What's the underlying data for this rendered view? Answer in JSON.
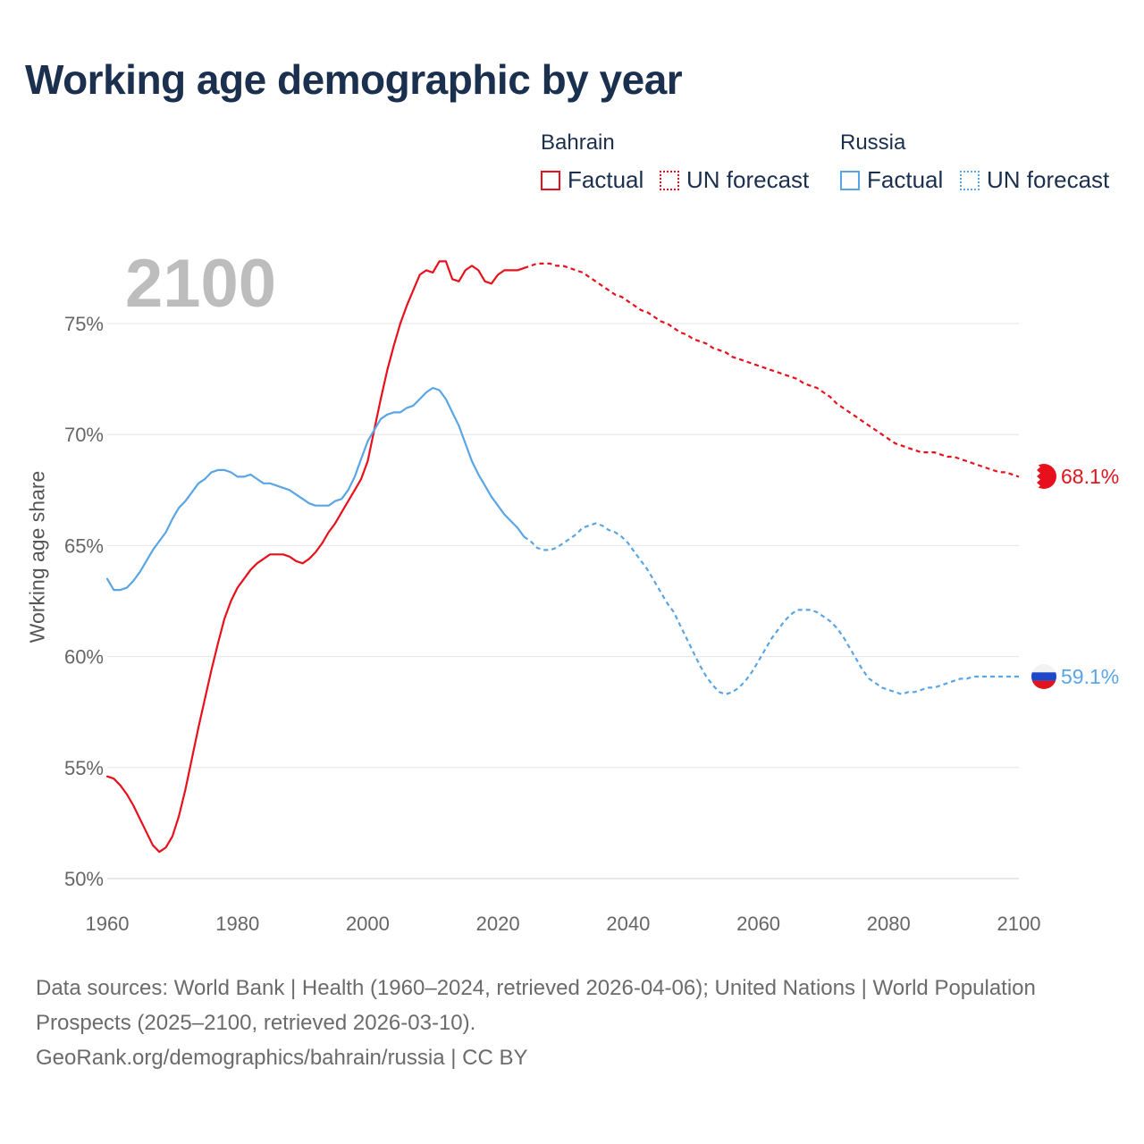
{
  "title": "Working age demographic by year",
  "current_year": "2100",
  "legend": {
    "groups": [
      {
        "name": "Bahrain",
        "color": "#e8101c",
        "factual_label": "Factual",
        "forecast_label": "UN forecast"
      },
      {
        "name": "Russia",
        "color": "#5aa5e6",
        "factual_label": "Factual",
        "forecast_label": "UN forecast"
      }
    ]
  },
  "footer": {
    "sources": "Data sources: World Bank | Health (1960–2024, retrieved 2026-04-06); United Nations | World Population Prospects (2025–2100, retrieved 2026-03-10).",
    "url": "GeoRank.org/demographics/bahrain/russia | CC BY"
  },
  "chart_data": {
    "type": "line",
    "title": "Working age demographic by year",
    "xlabel": "",
    "ylabel": "Working age share",
    "xlim": [
      1960,
      2100
    ],
    "ylim": [
      50,
      78
    ],
    "xticks": [
      1960,
      1980,
      2000,
      2020,
      2040,
      2060,
      2080,
      2100
    ],
    "xtick_labels": [
      "1960",
      "1980",
      "2000",
      "2020",
      "2040",
      "2060",
      "2080",
      "2100"
    ],
    "yticks": [
      50,
      55,
      60,
      65,
      70,
      75
    ],
    "ytick_labels": [
      "50%",
      "55%",
      "60%",
      "65%",
      "70%",
      "75%"
    ],
    "grid": true,
    "series": [
      {
        "name": "Bahrain",
        "color": "#e8101c",
        "end_label": "68.1%",
        "factual": {
          "x": [
            1960,
            1961,
            1962,
            1963,
            1964,
            1965,
            1966,
            1967,
            1968,
            1969,
            1970,
            1971,
            1972,
            1973,
            1974,
            1975,
            1976,
            1977,
            1978,
            1979,
            1980,
            1981,
            1982,
            1983,
            1984,
            1985,
            1986,
            1987,
            1988,
            1989,
            1990,
            1991,
            1992,
            1993,
            1994,
            1995,
            1996,
            1997,
            1998,
            1999,
            2000,
            2001,
            2002,
            2003,
            2004,
            2005,
            2006,
            2007,
            2008,
            2009,
            2010,
            2011,
            2012,
            2013,
            2014,
            2015,
            2016,
            2017,
            2018,
            2019,
            2020,
            2021,
            2022,
            2023,
            2024
          ],
          "y": [
            54.6,
            54.5,
            54.2,
            53.8,
            53.3,
            52.7,
            52.1,
            51.5,
            51.2,
            51.4,
            51.9,
            52.8,
            54.0,
            55.4,
            56.8,
            58.1,
            59.4,
            60.6,
            61.7,
            62.5,
            63.1,
            63.5,
            63.9,
            64.2,
            64.4,
            64.6,
            64.6,
            64.6,
            64.5,
            64.3,
            64.2,
            64.4,
            64.7,
            65.1,
            65.6,
            66.0,
            66.5,
            67.0,
            67.5,
            68.0,
            68.8,
            70.2,
            71.6,
            72.9,
            74.0,
            75.0,
            75.8,
            76.5,
            77.2,
            77.4,
            77.3,
            77.8,
            77.8,
            77.0,
            76.9,
            77.4,
            77.6,
            77.4,
            76.9,
            76.8,
            77.2,
            77.4,
            77.4,
            77.4,
            77.5
          ]
        },
        "forecast": {
          "x": [
            2024,
            2025,
            2026,
            2027,
            2028,
            2029,
            2030,
            2031,
            2032,
            2033,
            2034,
            2035,
            2036,
            2037,
            2038,
            2039,
            2040,
            2041,
            2042,
            2043,
            2044,
            2045,
            2046,
            2047,
            2048,
            2049,
            2050,
            2051,
            2052,
            2053,
            2054,
            2055,
            2056,
            2057,
            2058,
            2059,
            2060,
            2061,
            2062,
            2063,
            2064,
            2065,
            2066,
            2067,
            2068,
            2069,
            2070,
            2071,
            2072,
            2073,
            2074,
            2075,
            2076,
            2077,
            2078,
            2079,
            2080,
            2081,
            2082,
            2083,
            2084,
            2085,
            2086,
            2087,
            2088,
            2089,
            2090,
            2091,
            2092,
            2093,
            2094,
            2095,
            2096,
            2097,
            2098,
            2099,
            2100
          ],
          "y": [
            77.5,
            77.6,
            77.7,
            77.7,
            77.7,
            77.6,
            77.6,
            77.5,
            77.4,
            77.3,
            77.1,
            76.9,
            76.7,
            76.5,
            76.3,
            76.2,
            76.0,
            75.8,
            75.6,
            75.5,
            75.3,
            75.1,
            75.0,
            74.8,
            74.6,
            74.5,
            74.3,
            74.2,
            74.1,
            73.9,
            73.8,
            73.7,
            73.5,
            73.4,
            73.3,
            73.2,
            73.1,
            73.0,
            72.9,
            72.8,
            72.7,
            72.6,
            72.5,
            72.3,
            72.2,
            72.1,
            71.9,
            71.7,
            71.4,
            71.2,
            71.0,
            70.8,
            70.6,
            70.4,
            70.2,
            70.0,
            69.8,
            69.6,
            69.5,
            69.4,
            69.3,
            69.2,
            69.2,
            69.2,
            69.1,
            69.0,
            69.0,
            68.9,
            68.8,
            68.7,
            68.6,
            68.5,
            68.4,
            68.3,
            68.3,
            68.2,
            68.1
          ]
        }
      },
      {
        "name": "Russia",
        "color": "#5aa5e6",
        "end_label": "59.1%",
        "factual": {
          "x": [
            1960,
            1961,
            1962,
            1963,
            1964,
            1965,
            1966,
            1967,
            1968,
            1969,
            1970,
            1971,
            1972,
            1973,
            1974,
            1975,
            1976,
            1977,
            1978,
            1979,
            1980,
            1981,
            1982,
            1983,
            1984,
            1985,
            1986,
            1987,
            1988,
            1989,
            1990,
            1991,
            1992,
            1993,
            1994,
            1995,
            1996,
            1997,
            1998,
            1999,
            2000,
            2001,
            2002,
            2003,
            2004,
            2005,
            2006,
            2007,
            2008,
            2009,
            2010,
            2011,
            2012,
            2013,
            2014,
            2015,
            2016,
            2017,
            2018,
            2019,
            2020,
            2021,
            2022,
            2023,
            2024
          ],
          "y": [
            63.5,
            63.0,
            63.0,
            63.1,
            63.4,
            63.8,
            64.3,
            64.8,
            65.2,
            65.6,
            66.2,
            66.7,
            67.0,
            67.4,
            67.8,
            68.0,
            68.3,
            68.4,
            68.4,
            68.3,
            68.1,
            68.1,
            68.2,
            68.0,
            67.8,
            67.8,
            67.7,
            67.6,
            67.5,
            67.3,
            67.1,
            66.9,
            66.8,
            66.8,
            66.8,
            67.0,
            67.1,
            67.5,
            68.1,
            68.9,
            69.7,
            70.2,
            70.7,
            70.9,
            71.0,
            71.0,
            71.2,
            71.3,
            71.6,
            71.9,
            72.1,
            72.0,
            71.6,
            71.0,
            70.4,
            69.6,
            68.8,
            68.2,
            67.7,
            67.2,
            66.8,
            66.4,
            66.1,
            65.8,
            65.4
          ]
        },
        "forecast": {
          "x": [
            2024,
            2025,
            2026,
            2027,
            2028,
            2029,
            2030,
            2031,
            2032,
            2033,
            2034,
            2035,
            2036,
            2037,
            2038,
            2039,
            2040,
            2041,
            2042,
            2043,
            2044,
            2045,
            2046,
            2047,
            2048,
            2049,
            2050,
            2051,
            2052,
            2053,
            2054,
            2055,
            2056,
            2057,
            2058,
            2059,
            2060,
            2061,
            2062,
            2063,
            2064,
            2065,
            2066,
            2067,
            2068,
            2069,
            2070,
            2071,
            2072,
            2073,
            2074,
            2075,
            2076,
            2077,
            2078,
            2079,
            2080,
            2081,
            2082,
            2083,
            2084,
            2085,
            2086,
            2087,
            2088,
            2089,
            2090,
            2091,
            2092,
            2093,
            2094,
            2095,
            2096,
            2097,
            2098,
            2099,
            2100
          ],
          "y": [
            65.4,
            65.2,
            64.9,
            64.8,
            64.8,
            64.9,
            65.1,
            65.3,
            65.5,
            65.8,
            65.9,
            66.0,
            65.9,
            65.7,
            65.6,
            65.4,
            65.1,
            64.7,
            64.3,
            63.9,
            63.4,
            62.9,
            62.4,
            62.0,
            61.4,
            60.8,
            60.2,
            59.6,
            59.1,
            58.7,
            58.4,
            58.3,
            58.4,
            58.6,
            58.9,
            59.3,
            59.8,
            60.3,
            60.8,
            61.2,
            61.6,
            61.9,
            62.1,
            62.1,
            62.1,
            62.0,
            61.8,
            61.6,
            61.3,
            60.9,
            60.4,
            59.9,
            59.4,
            59.0,
            58.8,
            58.6,
            58.5,
            58.4,
            58.3,
            58.4,
            58.4,
            58.5,
            58.6,
            58.6,
            58.7,
            58.8,
            58.9,
            59.0,
            59.0,
            59.1,
            59.1,
            59.1,
            59.1,
            59.1,
            59.1,
            59.1,
            59.1
          ]
        }
      }
    ]
  }
}
